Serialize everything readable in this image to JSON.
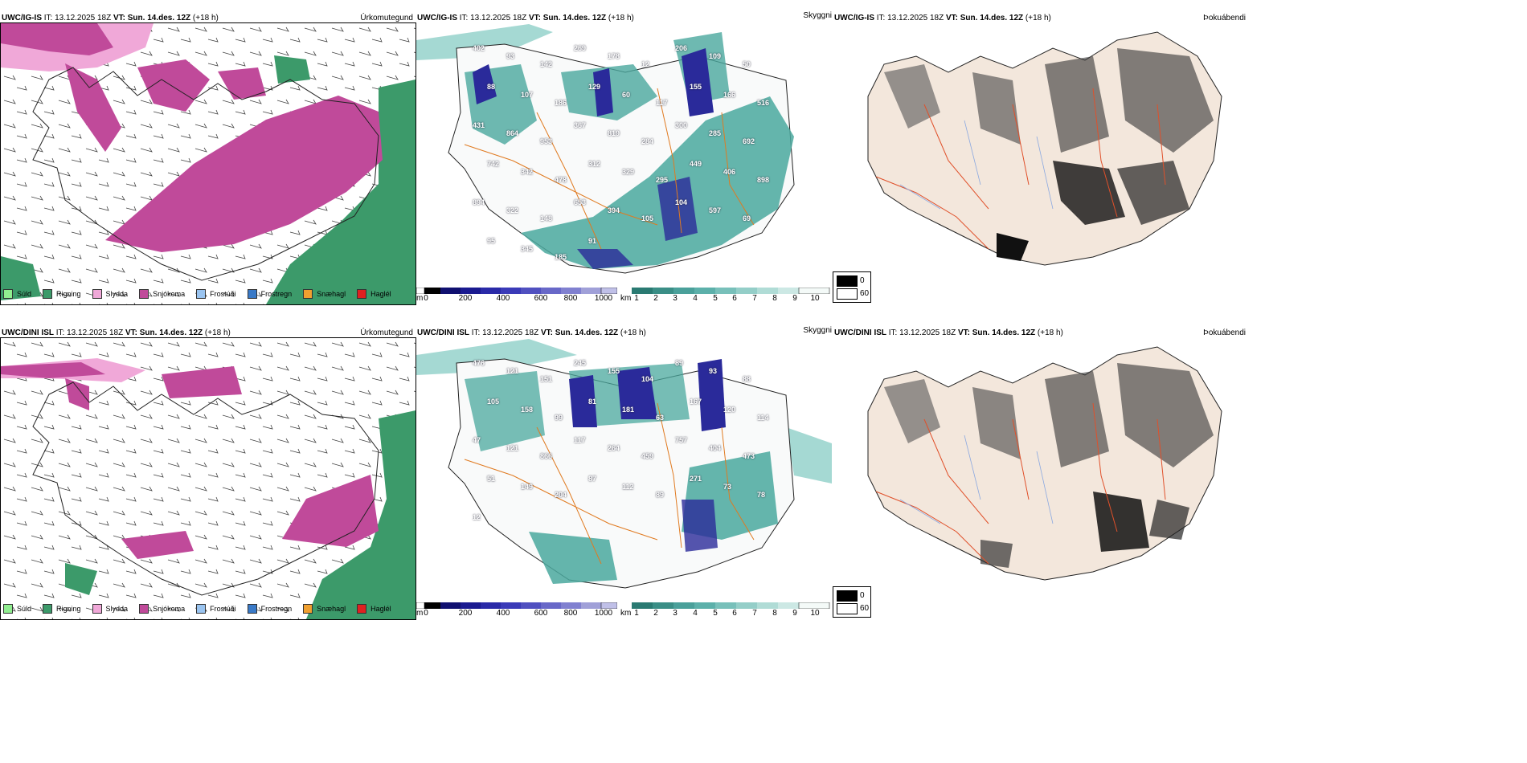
{
  "rows": [
    {
      "precip": {
        "model": "UWC/IG-IS",
        "it_label": "IT:",
        "it": "13.12.2025 18Z",
        "vt_label": "VT:",
        "vt": "Sun. 14.des. 12Z",
        "lead": "(+18 h)",
        "title": "Úrkomutegund"
      },
      "cloud": {
        "model": "UWC/IG-IS",
        "it_label": "IT:",
        "it": "13.12.2025 18Z",
        "vt_label": "VT:",
        "vt": "Sun. 14.des. 12Z",
        "lead": "(+18 h)"
      },
      "fog": {
        "model": "UWC/IG-IS",
        "it_label": "IT:",
        "it": "13.12.2025 18Z",
        "vt_label": "VT:",
        "vt": "Sun. 14.des. 12Z",
        "lead": "(+18 h)",
        "title": "Þokuábendi",
        "left_title": "Skyggni"
      },
      "numbers": [
        "402",
        "93",
        "142",
        "269",
        "178",
        "12",
        "206",
        "109",
        "50",
        "88",
        "107",
        "186",
        "129",
        "60",
        "117",
        "155",
        "166",
        "516",
        "431",
        "864",
        "953",
        "367",
        "819",
        "284",
        "300",
        "285",
        "692",
        "742",
        "342",
        "478",
        "312",
        "329",
        "295",
        "449",
        "406",
        "898",
        "894",
        "322",
        "148",
        "653",
        "394",
        "105",
        "104",
        "597",
        "69",
        "95",
        "345",
        "185",
        "91"
      ]
    },
    {
      "precip": {
        "model": "UWC/DINI ISL",
        "it_label": "IT:",
        "it": "13.12.2025 18Z",
        "vt_label": "VT:",
        "vt": "Sun. 14.des. 12Z",
        "lead": "(+18 h)",
        "title": "Úrkomutegund"
      },
      "cloud": {
        "model": "UWC/DINI ISL",
        "it_label": "IT:",
        "it": "13.12.2025 18Z",
        "vt_label": "VT:",
        "vt": "Sun. 14.des. 12Z",
        "lead": "(+18 h)"
      },
      "fog": {
        "model": "UWC/DINI ISL",
        "it_label": "IT:",
        "it": "13.12.2025 18Z",
        "vt_label": "VT:",
        "vt": "Sun. 14.des. 12Z",
        "lead": "(+18 h)",
        "title": "Þokuábendi",
        "left_title": "Skyggni"
      },
      "numbers": [
        "476",
        "121",
        "151",
        "245",
        "155",
        "104",
        "89",
        "93",
        "88",
        "105",
        "158",
        "99",
        "81",
        "181",
        "63",
        "167",
        "120",
        "114",
        "47",
        "121",
        "866",
        "117",
        "264",
        "459",
        "757",
        "404",
        "473",
        "51",
        "149",
        "204",
        "87",
        "112",
        "89",
        "271",
        "73",
        "78",
        "12"
      ]
    }
  ],
  "precip_legend": [
    {
      "label": "Súld",
      "color": "#90ee90"
    },
    {
      "label": "Rigning",
      "color": "#3c9a6a"
    },
    {
      "label": "Slydda",
      "color": "#f0a8d8"
    },
    {
      "label": "Snjókoma",
      "color": "#c04a9a"
    },
    {
      "label": "Frostúði",
      "color": "#9ac4f0"
    },
    {
      "label": "Frostregn",
      "color": "#3a7ac8"
    },
    {
      "label": "Snæhagl",
      "color": "#f0a030"
    },
    {
      "label": "Haglél",
      "color": "#e02020"
    }
  ],
  "height_bar": {
    "unit": "m",
    "ticks": [
      "0",
      "200",
      "400",
      "600",
      "800",
      "1000"
    ]
  },
  "visibility_bar": {
    "unit": "km",
    "ticks": [
      "1",
      "2",
      "3",
      "4",
      "5",
      "6",
      "7",
      "8",
      "9",
      "10"
    ]
  },
  "fog_legend": {
    "items": [
      {
        "label": "0",
        "color": "#000000"
      },
      {
        "label": "60",
        "color": "#ffffff"
      }
    ]
  },
  "colors": {
    "snow": "#c04a9a",
    "rain": "#3c9a6a",
    "sleet": "#f0a8d8",
    "cloud": "#4aa89e",
    "cloud_light": "#8fd0c8",
    "lowcloud": "#2a2a9a",
    "road": "#e07a20",
    "fogland": "#f3e7dc"
  }
}
